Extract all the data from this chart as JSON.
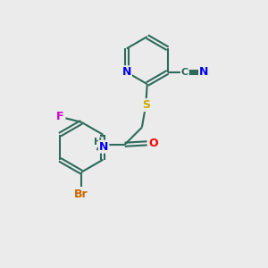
{
  "background_color": "#ebebeb",
  "bond_color": "#2d6b5a",
  "atom_colors": {
    "N": "#0000ee",
    "O": "#ff0000",
    "S": "#ccaa00",
    "F": "#cc00cc",
    "Br": "#cc6600",
    "C": "#2d6b5a",
    "H": "#2d6b5a"
  },
  "font_size": 9,
  "linewidth": 1.5
}
